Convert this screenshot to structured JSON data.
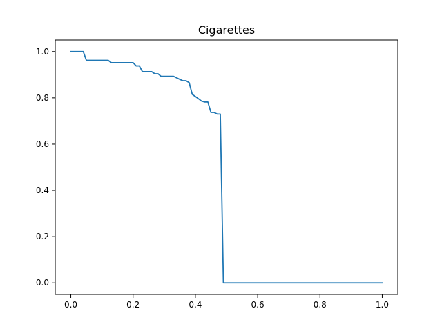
{
  "chart_data": {
    "type": "line",
    "title": "Cigarettes",
    "xlabel": "",
    "ylabel": "",
    "xlim": [
      -0.05,
      1.05
    ],
    "ylim": [
      -0.05,
      1.05
    ],
    "x_ticks": [
      0.0,
      0.2,
      0.4,
      0.6,
      0.8,
      1.0
    ],
    "x_tick_labels": [
      "0.0",
      "0.2",
      "0.4",
      "0.6",
      "0.8",
      "1.0"
    ],
    "y_ticks": [
      0.0,
      0.2,
      0.4,
      0.6,
      0.8,
      1.0
    ],
    "y_tick_labels": [
      "0.0",
      "0.2",
      "0.4",
      "0.6",
      "0.8",
      "1.0"
    ],
    "grid": false,
    "legend": "none",
    "series": [
      {
        "color": "#1f77b4",
        "x": [
          0.0,
          0.04,
          0.05,
          0.12,
          0.13,
          0.2,
          0.21,
          0.22,
          0.23,
          0.26,
          0.27,
          0.28,
          0.29,
          0.33,
          0.35,
          0.36,
          0.37,
          0.38,
          0.39,
          0.4,
          0.41,
          0.42,
          0.43,
          0.44,
          0.45,
          0.46,
          0.47,
          0.48,
          0.49,
          1.0
        ],
        "y": [
          1.0,
          1.0,
          0.962,
          0.962,
          0.952,
          0.952,
          0.938,
          0.938,
          0.913,
          0.913,
          0.904,
          0.904,
          0.893,
          0.893,
          0.88,
          0.874,
          0.874,
          0.866,
          0.815,
          0.806,
          0.796,
          0.786,
          0.782,
          0.782,
          0.737,
          0.737,
          0.73,
          0.73,
          0.0,
          0.0
        ]
      }
    ]
  }
}
